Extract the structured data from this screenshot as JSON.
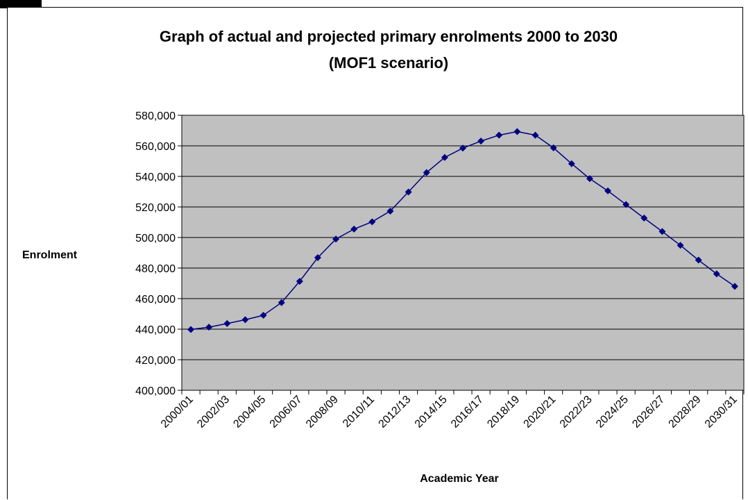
{
  "chart_data": {
    "type": "line",
    "title_lines": [
      "Graph of actual and projected primary enrolments 2000 to 2030",
      "(MOF1 scenario)"
    ],
    "xlabel": "Academic Year",
    "ylabel": "Enrolment",
    "ylim": [
      400000,
      580000
    ],
    "y_ticks": [
      "400,000",
      "420,000",
      "440,000",
      "460,000",
      "480,000",
      "500,000",
      "520,000",
      "540,000",
      "560,000",
      "580,000"
    ],
    "x_tick_labels": [
      "2000/01",
      "2002/03",
      "2004/05",
      "2006/07",
      "2008/09",
      "2010/11",
      "2012/13",
      "2014/15",
      "2016/17",
      "2018/19",
      "2020/21",
      "2022/23",
      "2024/25",
      "2026/27",
      "2028/29",
      "2030/31"
    ],
    "categories": [
      "2000/01",
      "2001/02",
      "2002/03",
      "2003/04",
      "2004/05",
      "2005/06",
      "2006/07",
      "2007/08",
      "2008/09",
      "2009/10",
      "2010/11",
      "2011/12",
      "2012/13",
      "2013/14",
      "2014/15",
      "2015/16",
      "2016/17",
      "2017/18",
      "2018/19",
      "2019/20",
      "2020/21",
      "2021/22",
      "2022/23",
      "2023/24",
      "2024/25",
      "2025/26",
      "2026/27",
      "2027/28",
      "2028/29",
      "2029/30",
      "2030/31"
    ],
    "values": [
      439800,
      441300,
      443700,
      446200,
      449100,
      457400,
      471300,
      486800,
      499000,
      505500,
      510300,
      517300,
      529800,
      542500,
      552400,
      558500,
      563100,
      567000,
      569300,
      567000,
      558700,
      548300,
      538500,
      530500,
      521600,
      512700,
      503900,
      494900,
      485200,
      476200,
      468000
    ],
    "grid": true,
    "legend": "none",
    "colors": {
      "series": "#000080",
      "plot_background": "#c0c0c0",
      "gridline": "#000000"
    }
  }
}
